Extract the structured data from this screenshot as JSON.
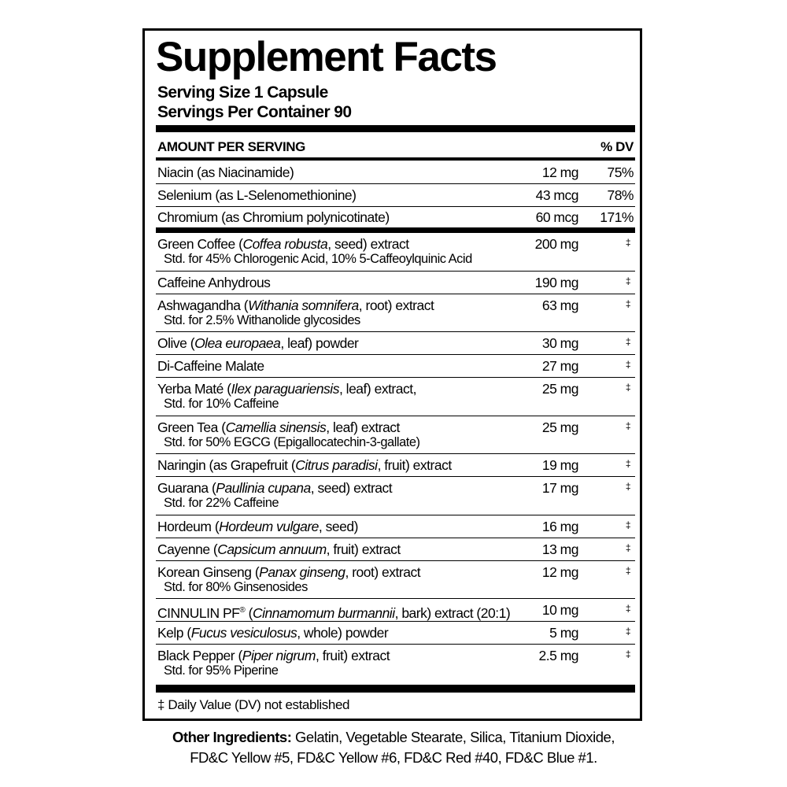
{
  "title": "Supplement Facts",
  "serving_size": "Serving Size 1 Capsule",
  "servings_per_container": "Servings Per Container 90",
  "header": {
    "amount_label": "AMOUNT PER SERVING",
    "dv_label": "% DV"
  },
  "vitamins": [
    {
      "name": "Niacin",
      "detail": " (as Niacinamide)",
      "amount": "12 mg",
      "dv": "75%"
    },
    {
      "name": "Selenium",
      "detail": " (as L-Selenomethionine)",
      "amount": "43 mcg",
      "dv": "78%"
    },
    {
      "name": "Chromium",
      "detail": " (as Chromium polynicotinate)",
      "amount": "60 mcg",
      "dv": "171%"
    }
  ],
  "ingredients": [
    {
      "parts": [
        {
          "t": "Green Coffee ("
        },
        {
          "t": "Coffea robusta",
          "i": true
        },
        {
          "t": ", seed) extract"
        }
      ],
      "sub": "Std. for 45% Chlorogenic Acid, 10% 5-Caffeoylquinic Acid",
      "amount": "200 mg",
      "dv": "‡"
    },
    {
      "parts": [
        {
          "t": "Caffeine Anhydrous"
        }
      ],
      "amount": "190 mg",
      "dv": "‡"
    },
    {
      "parts": [
        {
          "t": "Ashwagandha ("
        },
        {
          "t": "Withania somnifera",
          "i": true
        },
        {
          "t": ", root) extract"
        }
      ],
      "sub": "Std. for 2.5% Withanolide glycosides",
      "amount": "63 mg",
      "dv": "‡"
    },
    {
      "parts": [
        {
          "t": "Olive ("
        },
        {
          "t": "Olea europaea",
          "i": true
        },
        {
          "t": ", leaf) powder"
        }
      ],
      "amount": "30 mg",
      "dv": "‡"
    },
    {
      "parts": [
        {
          "t": "Di-Caffeine Malate"
        }
      ],
      "amount": "27 mg",
      "dv": "‡"
    },
    {
      "parts": [
        {
          "t": "Yerba Maté ("
        },
        {
          "t": "Ilex paraguariensis",
          "i": true
        },
        {
          "t": ", leaf) extract,"
        }
      ],
      "sub": "Std. for 10% Caffeine",
      "amount": "25 mg",
      "dv": "‡"
    },
    {
      "parts": [
        {
          "t": "Green Tea ("
        },
        {
          "t": "Camellia sinensis",
          "i": true
        },
        {
          "t": ", leaf) extract"
        }
      ],
      "sub": "Std. for 50% EGCG (Epigallocatechin-3-gallate)",
      "amount": "25 mg",
      "dv": "‡"
    },
    {
      "parts": [
        {
          "t": "Naringin (as Grapefruit ("
        },
        {
          "t": "Citrus paradisi",
          "i": true
        },
        {
          "t": ", fruit) extract"
        }
      ],
      "amount": "19 mg",
      "dv": "‡"
    },
    {
      "parts": [
        {
          "t": "Guarana ("
        },
        {
          "t": "Paullinia cupana",
          "i": true
        },
        {
          "t": ", seed) extract"
        }
      ],
      "sub": "Std. for 22% Caffeine",
      "amount": "17 mg",
      "dv": "‡"
    },
    {
      "parts": [
        {
          "t": "Hordeum ("
        },
        {
          "t": "Hordeum vulgare",
          "i": true
        },
        {
          "t": ", seed)"
        }
      ],
      "amount": "16 mg",
      "dv": "‡"
    },
    {
      "parts": [
        {
          "t": "Cayenne ("
        },
        {
          "t": "Capsicum annuum",
          "i": true
        },
        {
          "t": ", fruit) extract"
        }
      ],
      "amount": "13 mg",
      "dv": "‡"
    },
    {
      "parts": [
        {
          "t": "Korean Ginseng ("
        },
        {
          "t": "Panax ginseng",
          "i": true
        },
        {
          "t": ", root) extract"
        }
      ],
      "sub": "Std. for 80% Ginsenosides",
      "amount": "12 mg",
      "dv": "‡"
    },
    {
      "parts": [
        {
          "t": "CINNULIN PF"
        },
        {
          "t": "®",
          "sup": true
        },
        {
          "t": " ("
        },
        {
          "t": "Cinnamomum burmannii",
          "i": true
        },
        {
          "t": ", bark) extract (20:1)"
        }
      ],
      "amount": "10 mg",
      "dv": "‡"
    },
    {
      "parts": [
        {
          "t": "Kelp ("
        },
        {
          "t": "Fucus vesiculosus",
          "i": true
        },
        {
          "t": ", whole) powder"
        }
      ],
      "amount": "5 mg",
      "dv": "‡"
    },
    {
      "parts": [
        {
          "t": "Black Pepper ("
        },
        {
          "t": "Piper nigrum",
          "i": true
        },
        {
          "t": ", fruit) extract"
        }
      ],
      "sub": "Std. for 95% Piperine",
      "amount": "2.5 mg",
      "dv": "‡"
    }
  ],
  "footnote": "‡ Daily Value (DV) not established",
  "other_ingredients": {
    "label": "Other Ingredients:",
    "line1": " Gelatin, Vegetable Stearate, Silica, Titanium Dioxide,",
    "line2": "FD&C Yellow #5, FD&C Yellow #6, FD&C Red #40, FD&C Blue #1."
  }
}
